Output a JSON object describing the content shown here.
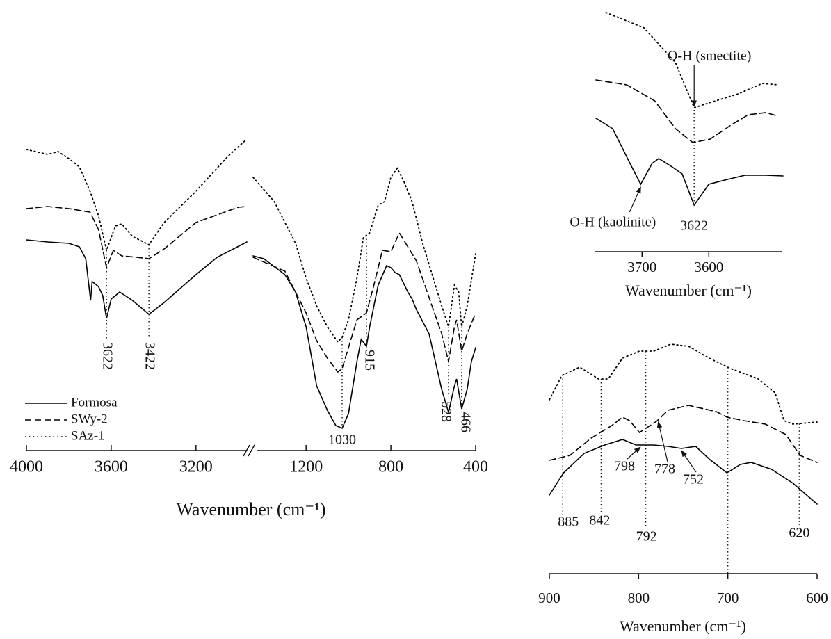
{
  "chart_data": [
    {
      "type": "line",
      "x_label": "Wavenumber (cm⁻¹)",
      "xlim": [
        4000,
        400
      ],
      "x_break": [
        2950,
        1450
      ],
      "xticks": [
        4000,
        3600,
        3200,
        1200,
        800,
        400
      ],
      "ylim": [
        0,
        460
      ],
      "legend": "lower left",
      "series": [
        {
          "name": "Formosa",
          "color": "#000000",
          "style": "solid",
          "x": [
            4000,
            3900,
            3800,
            3750,
            3720,
            3697,
            3690,
            3660,
            3640,
            3622,
            3600,
            3560,
            3500,
            3422,
            3350,
            3200,
            3100,
            2960,
            1450,
            1400,
            1300,
            1250,
            1200,
            1150,
            1100,
            1060,
            1030,
            1000,
            960,
            940,
            915,
            900,
            860,
            820,
            800,
            780,
            760,
            720,
            700,
            680,
            620,
            560,
            528,
            500,
            490,
            466,
            440,
            420,
            400
          ],
          "values": [
            305,
            302,
            300,
            295,
            278,
            218,
            245,
            238,
            225,
            192,
            220,
            230,
            218,
            198,
            215,
            255,
            280,
            302,
            282,
            278,
            255,
            230,
            180,
            95,
            60,
            38,
            34,
            55,
            130,
            162,
            152,
            180,
            240,
            268,
            265,
            258,
            255,
            230,
            220,
            205,
            170,
            90,
            57,
            95,
            105,
            62,
            90,
            130,
            150
          ]
        },
        {
          "name": "SWy-2",
          "color": "#000000",
          "style": "dashed",
          "x": [
            4000,
            3900,
            3800,
            3700,
            3660,
            3622,
            3590,
            3550,
            3480,
            3422,
            3350,
            3200,
            3000,
            2960,
            1450,
            1300,
            1200,
            1150,
            1100,
            1050,
            1030,
            1000,
            960,
            915,
            880,
            840,
            800,
            760,
            720,
            680,
            640,
            600,
            560,
            528,
            500,
            490,
            466,
            440,
            400
          ],
          "values": [
            350,
            353,
            350,
            345,
            320,
            265,
            290,
            282,
            280,
            278,
            292,
            330,
            352,
            353,
            280,
            260,
            200,
            160,
            135,
            115,
            120,
            150,
            190,
            200,
            240,
            290,
            288,
            315,
            295,
            275,
            240,
            205,
            170,
            130,
            180,
            190,
            145,
            170,
            200
          ]
        },
        {
          "name": "SAz-1",
          "color": "#000000",
          "style": "dotted",
          "x": [
            4000,
            3900,
            3850,
            3800,
            3750,
            3700,
            3660,
            3622,
            3580,
            3550,
            3500,
            3422,
            3350,
            3200,
            3050,
            2960,
            1450,
            1350,
            1250,
            1200,
            1150,
            1100,
            1050,
            1030,
            1000,
            960,
            930,
            900,
            860,
            830,
            800,
            770,
            740,
            700,
            650,
            600,
            560,
            528,
            500,
            480,
            466,
            440,
            400
          ],
          "values": [
            435,
            428,
            432,
            422,
            410,
            375,
            340,
            290,
            325,
            328,
            310,
            298,
            330,
            375,
            425,
            450,
            395,
            360,
            300,
            250,
            210,
            180,
            158,
            165,
            190,
            250,
            308,
            315,
            355,
            360,
            395,
            408,
            390,
            360,
            300,
            250,
            210,
            180,
            240,
            230,
            180,
            210,
            285
          ]
        }
      ],
      "peaks": [
        3622,
        3422,
        915,
        1030,
        528,
        466
      ]
    },
    {
      "type": "line",
      "x_label": "Wavenumber (cm⁻¹)",
      "xlim": [
        3770,
        3490
      ],
      "xticks": [
        3700,
        3600
      ],
      "ylim": [
        0,
        400
      ],
      "series": [
        {
          "color": "#000000",
          "style": "solid",
          "x": [
            3769,
            3744,
            3718,
            3702,
            3685,
            3675,
            3655,
            3640,
            3622,
            3600,
            3572,
            3546,
            3515,
            3489
          ],
          "values": [
            230,
            215,
            165,
            135,
            165,
            172,
            160,
            150,
            105,
            135,
            142,
            148,
            148,
            147
          ]
        },
        {
          "color": "#000000",
          "style": "dashed",
          "x": [
            3769,
            3723,
            3681,
            3650,
            3624,
            3598,
            3567,
            3541,
            3515,
            3496
          ],
          "values": [
            285,
            278,
            255,
            215,
            195,
            200,
            220,
            235,
            238,
            233
          ]
        },
        {
          "color": "#000000",
          "style": "dotted",
          "x": [
            3754,
            3697,
            3650,
            3622,
            3600,
            3556,
            3520,
            3496
          ],
          "values": [
            382,
            360,
            310,
            245,
            252,
            265,
            280,
            278
          ]
        }
      ],
      "annotations": [
        {
          "x": 3622,
          "label": "O-H (smectite)"
        },
        {
          "x": 3702,
          "label": "O-H (kaolinite)"
        }
      ],
      "peaks": [
        3622
      ]
    },
    {
      "type": "line",
      "x_label": "Wavenumber (cm⁻¹)",
      "xlim": [
        900,
        600
      ],
      "xticks": [
        900,
        800,
        700,
        600
      ],
      "ylim": [
        0,
        300
      ],
      "series": [
        {
          "color": "#000000",
          "style": "solid",
          "x": [
            900,
            884,
            861,
            838,
            818,
            803,
            783,
            767,
            752,
            736,
            721,
            701,
            686,
            674,
            651,
            627,
            600
          ],
          "values": [
            88,
            120,
            148,
            160,
            168,
            160,
            160,
            158,
            155,
            158,
            140,
            120,
            132,
            135,
            125,
            105,
            75
          ]
        },
        {
          "color": "#000000",
          "style": "dashed",
          "x": [
            900,
            877,
            853,
            830,
            818,
            810,
            799,
            787,
            779,
            767,
            744,
            713,
            701,
            682,
            658,
            635,
            619,
            600
          ],
          "values": [
            138,
            145,
            170,
            188,
            200,
            195,
            178,
            188,
            195,
            210,
            217,
            208,
            200,
            195,
            190,
            175,
            145,
            135
          ]
        },
        {
          "color": "#000000",
          "style": "dotted",
          "x": [
            900,
            886,
            866,
            845,
            834,
            818,
            799,
            783,
            764,
            744,
            721,
            697,
            666,
            647,
            637,
            627,
            600
          ],
          "values": [
            225,
            260,
            272,
            255,
            255,
            285,
            295,
            295,
            305,
            302,
            285,
            270,
            255,
            235,
            195,
            190,
            193
          ]
        }
      ],
      "lines": [
        885,
        842,
        792,
        700,
        620
      ],
      "peaks": [
        885,
        842,
        792,
        620
      ],
      "arrows": [
        798,
        778,
        752
      ]
    }
  ]
}
